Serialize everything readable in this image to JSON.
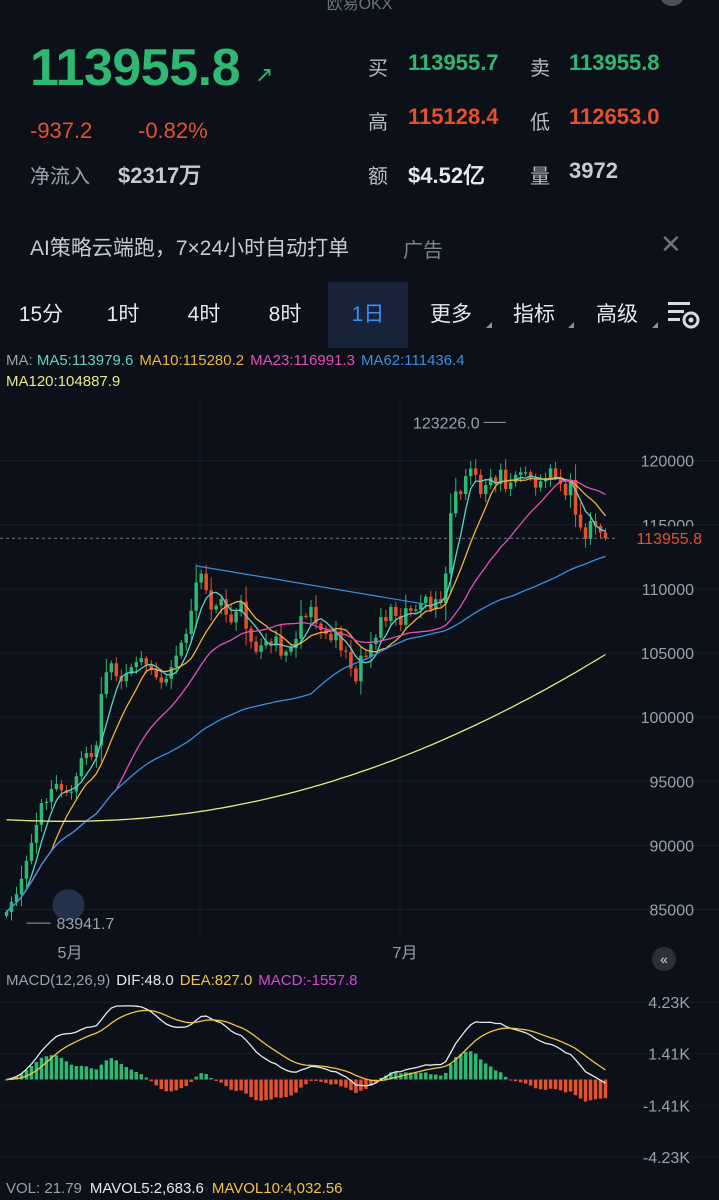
{
  "header": {
    "title": "欧易OKX"
  },
  "ticker": {
    "last_price": "113955.8",
    "arrow": "↗",
    "change_abs": "-937.2",
    "change_pct": "-0.82%",
    "netflow_label": "净流入",
    "netflow_value": "$2317万",
    "stats": [
      {
        "label": "买",
        "value": "113955.7",
        "color": "#2eb872"
      },
      {
        "label": "卖",
        "value": "113955.8",
        "color": "#2eb872"
      },
      {
        "label": "高",
        "value": "115128.4",
        "color": "#e5512f"
      },
      {
        "label": "低",
        "value": "112653.0",
        "color": "#e5512f"
      },
      {
        "label": "额",
        "value": "$4.52亿",
        "color": "#e6e8ec"
      },
      {
        "label": "量",
        "value": "3972",
        "color": "#c6cbd2"
      }
    ]
  },
  "ad": {
    "text": "AI策略云端跑，7×24小时自动打单",
    "tag": "广告",
    "close": "✕"
  },
  "tabs": [
    {
      "label": "15分",
      "name": "tab-15m",
      "active": false,
      "menu": false
    },
    {
      "label": "1时",
      "name": "tab-1h",
      "active": false,
      "menu": false
    },
    {
      "label": "4时",
      "name": "tab-4h",
      "active": false,
      "menu": false
    },
    {
      "label": "8时",
      "name": "tab-8h",
      "active": false,
      "menu": false
    },
    {
      "label": "1日",
      "name": "tab-1d",
      "active": true,
      "menu": false
    },
    {
      "label": "更多",
      "name": "tab-more",
      "active": false,
      "menu": true
    },
    {
      "label": "指标",
      "name": "tab-indicators",
      "active": false,
      "menu": true
    },
    {
      "label": "高级",
      "name": "tab-advanced",
      "active": false,
      "menu": true
    }
  ],
  "settings_icon": "chart-settings-icon",
  "ma_legend": {
    "prefix": "MA:",
    "items": [
      {
        "text": "MA5:113979.6",
        "color": "#5fd4c4"
      },
      {
        "text": "MA10:115280.2",
        "color": "#f2b23e"
      },
      {
        "text": "MA23:116991.3",
        "color": "#e64fb8"
      },
      {
        "text": "MA62:111436.4",
        "color": "#3b8fe0"
      },
      {
        "text": "MA120:104887.9",
        "color": "#e8e88a"
      }
    ]
  },
  "chart_data": {
    "type": "candlestick",
    "y_ticks": [
      "120000",
      "115000",
      "110000",
      "105000",
      "100000",
      "95000",
      "90000",
      "85000"
    ],
    "x_labels": [
      "5月",
      "7月"
    ],
    "current_price_tag": "113955.8",
    "high_marker": "123226.0",
    "low_marker": "83941.7",
    "ylim": [
      82000,
      124500
    ],
    "closes": [
      84800,
      85600,
      86200,
      87400,
      88800,
      90200,
      91600,
      93300,
      93400,
      94400,
      94800,
      94300,
      94100,
      94200,
      95400,
      96800,
      97200,
      96900,
      97800,
      101800,
      103500,
      104200,
      103200,
      102800,
      103400,
      103900,
      104300,
      104600,
      104100,
      103700,
      103100,
      102700,
      103000,
      103900,
      104800,
      105800,
      106500,
      108300,
      110500,
      111200,
      109900,
      108400,
      108700,
      109200,
      108000,
      107400,
      108200,
      109000,
      106900,
      105900,
      105100,
      105600,
      105900,
      105600,
      106300,
      104800,
      105100,
      105400,
      106100,
      107900,
      107800,
      108600,
      107300,
      106800,
      106500,
      106000,
      106700,
      105200,
      105100,
      103800,
      102800,
      104800,
      104700,
      105700,
      106200,
      107800,
      107500,
      108600,
      107900,
      107200,
      108500,
      108300,
      108400,
      108900,
      109400,
      108400,
      109200,
      108900,
      111200,
      115900,
      117600,
      117400,
      118800,
      119400,
      118900,
      117400,
      118100,
      118700,
      118200,
      119300,
      117800,
      118300,
      118900,
      119100,
      119100,
      118600,
      117900,
      118400,
      118500,
      119400,
      118700,
      118200,
      117300,
      118500,
      115800,
      114800,
      113900,
      115300,
      114900,
      114400,
      113955
    ],
    "ma5": 113979.6,
    "ma10": 115280.2,
    "ma23": 116991.3,
    "ma62": 111436.4,
    "ma120": 104887.9
  },
  "macd_legend": {
    "title": "MACD(12,26,9)",
    "items": [
      {
        "text": "DIF:48.0",
        "color": "#e6e8ec"
      },
      {
        "text": "DEA:827.0",
        "color": "#f2c24a"
      },
      {
        "text": "MACD:-1557.8",
        "color": "#d44ad4"
      }
    ]
  },
  "macd_ticks": [
    "4.23K",
    "1.41K",
    "-1.41K",
    "-4.23K"
  ],
  "collapse_icon": "chevron-left-icon",
  "vol_legend": {
    "items": [
      {
        "text": "VOL: 21.79",
        "color": "#9aa1ab"
      },
      {
        "text": "MAVOL5:2,683.6",
        "color": "#e6e8ec"
      },
      {
        "text": "MAVOL10:4,032.56",
        "color": "#f2c24a"
      }
    ]
  }
}
